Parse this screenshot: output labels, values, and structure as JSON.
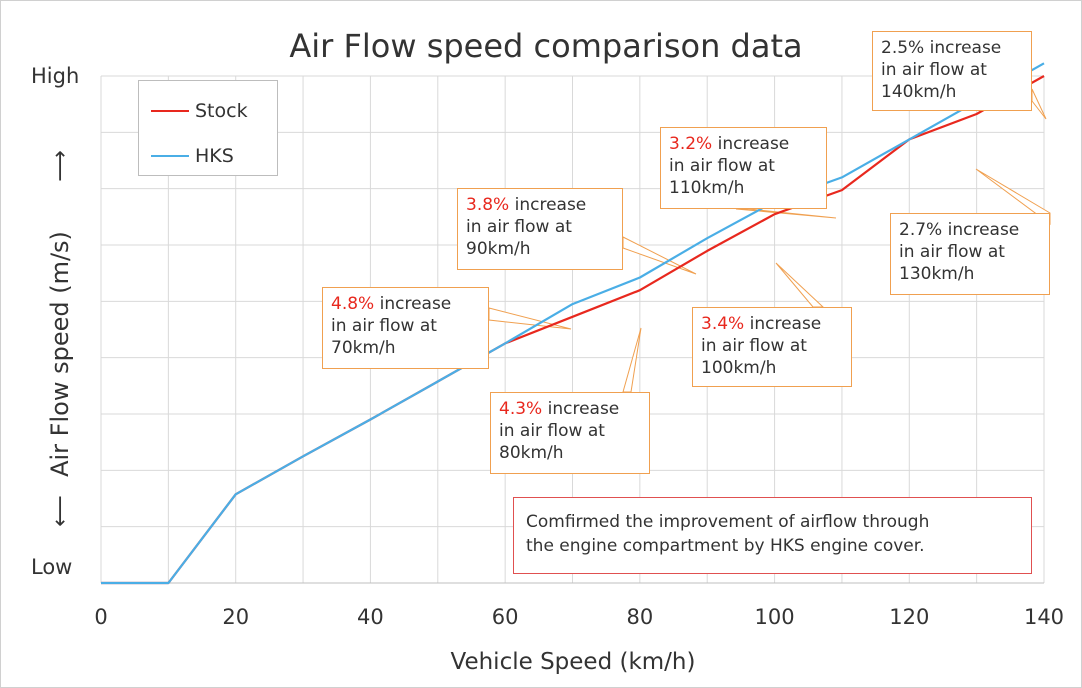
{
  "chart_data": {
    "type": "line",
    "title": "Air Flow speed comparison data",
    "xlabel": "Vehicle Speed (km/h)",
    "ylabel": "Air Flow speed (m/s)",
    "ylabel_arrow_up": "⟶",
    "ylabel_arrow_down": "⟵",
    "y_tick_high": "High",
    "y_tick_low": "Low",
    "xlim": [
      0,
      140
    ],
    "ylim": [
      0,
      8
    ],
    "x_ticks": [
      0,
      20,
      40,
      60,
      80,
      100,
      120,
      140
    ],
    "x": [
      0,
      10,
      20,
      30,
      40,
      50,
      60,
      70,
      80,
      90,
      100,
      110,
      120,
      130,
      140
    ],
    "series": [
      {
        "name": "Stock",
        "color": "#e8281e",
        "values": [
          0,
          0,
          1.4,
          2.0,
          2.58,
          3.18,
          3.78,
          4.2,
          4.62,
          5.24,
          5.82,
          6.2,
          7.0,
          7.4,
          8.0
        ]
      },
      {
        "name": "HKS",
        "color": "#4aaee6",
        "values": [
          0,
          0,
          1.4,
          2.0,
          2.58,
          3.18,
          3.78,
          4.4,
          4.82,
          5.44,
          6.02,
          6.4,
          7.0,
          7.6,
          8.2
        ]
      }
    ],
    "grid": true,
    "legend_position": "top-left",
    "annotations": [
      {
        "pct": "4.8%",
        "rest1": " increase",
        "line2": "in air flow at",
        "line3": "70km/h"
      },
      {
        "pct": "4.3%",
        "rest1": " increase",
        "line2": "in air flow at",
        "line3": "80km/h"
      },
      {
        "pct": "3.8%",
        "rest1": " increase",
        "line2": "in air flow at",
        "line3": "90km/h"
      },
      {
        "pct": "3.4%",
        "rest1": " increase",
        "line2": "in air flow at",
        "line3": "100km/h"
      },
      {
        "pct": "3.2%",
        "rest1": " increase",
        "line2": "in air flow at",
        "line3": "110km/h"
      },
      {
        "pct": "2.7%",
        "rest1": " increase",
        "line2": "in air flow at",
        "line3": "130km/h"
      },
      {
        "pct": "2.5%",
        "rest1": " increase",
        "line2": "in air flow at",
        "line3": "140km/h"
      }
    ],
    "note": {
      "line1": "Comfirmed the improvement of airflow through",
      "line2": "the engine compartment by HKS engine cover."
    }
  },
  "colors": {
    "grid": "#d9d9d9",
    "callout_border": "#f0a050",
    "note_border": "#e05050",
    "highlight": "#e8281e"
  }
}
